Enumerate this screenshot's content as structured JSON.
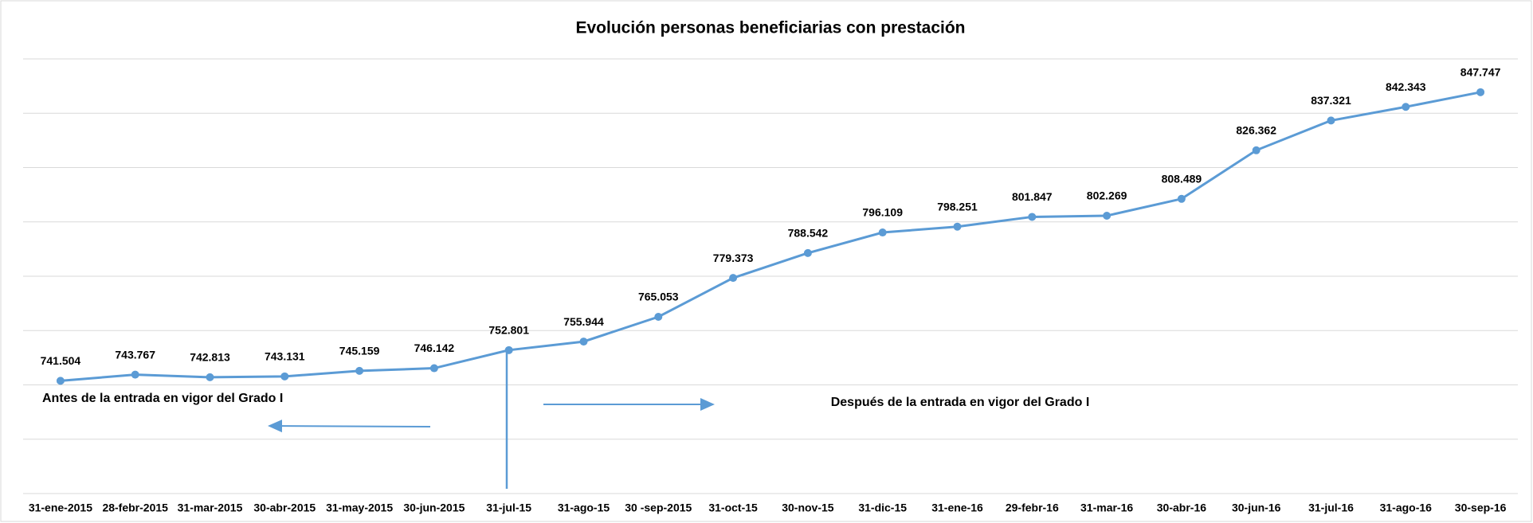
{
  "chart_data": {
    "type": "line",
    "title": "Evolución personas beneficiarias con prestación",
    "categories": [
      "31-ene-2015",
      "28-febr-2015",
      "31-mar-2015",
      "30-abr-2015",
      "31-may-2015",
      "30-jun-2015",
      "31-jul-15",
      "31-ago-15",
      "30 -sep-2015",
      "31-oct-15",
      "30-nov-15",
      "31-dic-15",
      "31-ene-16",
      "29-febr-16",
      "31-mar-16",
      "30-abr-16",
      "30-jun-16",
      "31-jul-16",
      "31-ago-16",
      "30-sep-16"
    ],
    "series": [
      {
        "name": "Personas beneficiarias",
        "color": "#5b9bd5",
        "values": [
          741504,
          743767,
          742813,
          743131,
          745159,
          746142,
          752801,
          755944,
          765053,
          779373,
          788542,
          796109,
          798251,
          801847,
          802269,
          808489,
          826362,
          837321,
          842343,
          847747
        ],
        "value_labels": [
          "741.504",
          "743.767",
          "742.813",
          "743.131",
          "745.159",
          "746.142",
          "752.801",
          "755.944",
          "765.053",
          "779.373",
          "788.542",
          "796.109",
          "798.251",
          "801.847",
          "802.269",
          "808.489",
          "826.362",
          "837.321",
          "842.343",
          "847.747"
        ]
      }
    ],
    "ylim": [
      700000,
      860000
    ],
    "yticks": [
      700000,
      720000,
      740000,
      760000,
      780000,
      800000,
      820000,
      840000,
      860000
    ],
    "grid": true,
    "annotations": [
      "Antes de la entrada en vigor del Grado I",
      "Después de la entrada en vigor del Grado I"
    ]
  }
}
